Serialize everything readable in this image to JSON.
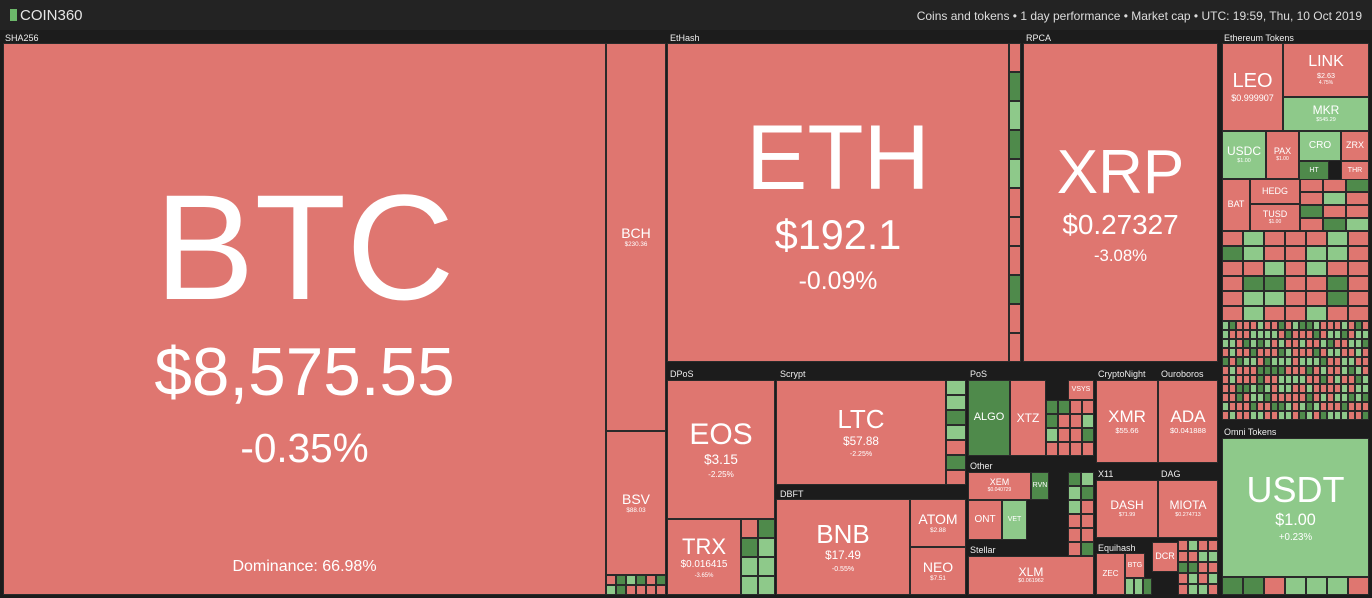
{
  "header": {
    "logo": "COIN360",
    "info": "Coins and tokens • 1 day performance • Market cap • UTC: 19:59, Thu, 10 Oct 2019"
  },
  "groups": [
    {
      "label": "SHA256",
      "tiles": [
        {
          "symbol": "BTC",
          "price": "$8,575.55",
          "change": "-0.35%",
          "note": "Dominance: 66.98%"
        },
        {
          "symbol": "BCH",
          "price": "$230.36"
        },
        {
          "symbol": "BSV",
          "price": "$88.03"
        }
      ]
    },
    {
      "label": "EtHash",
      "tiles": [
        {
          "symbol": "ETH",
          "price": "$192.1",
          "change": "-0.09%"
        }
      ]
    },
    {
      "label": "RPCA",
      "tiles": [
        {
          "symbol": "XRP",
          "price": "$0.27327",
          "change": "-3.08%"
        }
      ]
    },
    {
      "label": "Ethereum Tokens",
      "tiles": [
        {
          "symbol": "LEO",
          "price": "$0.999907"
        },
        {
          "symbol": "LINK",
          "price": "$2.63",
          "change": "4.75%"
        },
        {
          "symbol": "MKR",
          "price": "$545.29"
        },
        {
          "symbol": "USDC",
          "price": "$1.00"
        },
        {
          "symbol": "PAX",
          "price": "$1.00"
        },
        {
          "symbol": "CRO"
        },
        {
          "symbol": "ZRX"
        },
        {
          "symbol": "HT"
        },
        {
          "symbol": "THR"
        },
        {
          "symbol": "BAT"
        },
        {
          "symbol": "HEDG"
        },
        {
          "symbol": "TUSD",
          "price": "$1.00"
        }
      ]
    },
    {
      "label": "Omni Tokens",
      "tiles": [
        {
          "symbol": "USDT",
          "price": "$1.00",
          "change": "+0.23%"
        }
      ]
    },
    {
      "label": "DPoS",
      "tiles": [
        {
          "symbol": "EOS",
          "price": "$3.15",
          "change": "-2.25%"
        },
        {
          "symbol": "TRX",
          "price": "$0.016415",
          "change": "-3.65%"
        }
      ]
    },
    {
      "label": "Scrypt",
      "tiles": [
        {
          "symbol": "LTC",
          "price": "$57.88",
          "change": "-2.25%"
        }
      ]
    },
    {
      "label": "DBFT",
      "tiles": [
        {
          "symbol": "BNB",
          "price": "$17.49",
          "change": "-0.55%"
        },
        {
          "symbol": "ATOM",
          "price": "$2.88"
        },
        {
          "symbol": "NEO",
          "price": "$7.51"
        }
      ]
    },
    {
      "label": "PoS",
      "tiles": [
        {
          "symbol": "ALGO"
        },
        {
          "symbol": "XTZ"
        },
        {
          "symbol": "VSYS"
        }
      ]
    },
    {
      "label": "Other",
      "tiles": [
        {
          "symbol": "XEM",
          "price": "$0.040729"
        },
        {
          "symbol": "ONT"
        },
        {
          "symbol": "VET"
        },
        {
          "symbol": "RVN"
        }
      ]
    },
    {
      "label": "Stellar",
      "tiles": [
        {
          "symbol": "XLM",
          "price": "$0.061962"
        }
      ]
    },
    {
      "label": "CryptoNight",
      "tiles": [
        {
          "symbol": "XMR",
          "price": "$55.66"
        }
      ]
    },
    {
      "label": "Ouroboros",
      "tiles": [
        {
          "symbol": "ADA",
          "price": "$0.041888"
        }
      ]
    },
    {
      "label": "X11",
      "tiles": [
        {
          "symbol": "DASH",
          "price": "$71.99"
        }
      ]
    },
    {
      "label": "DAG",
      "tiles": [
        {
          "symbol": "MIOTA",
          "price": "$0.274713"
        }
      ]
    },
    {
      "label": "Equihash",
      "tiles": [
        {
          "symbol": "ZEC"
        },
        {
          "symbol": "BTG"
        },
        {
          "symbol": "DCR"
        }
      ]
    }
  ]
}
